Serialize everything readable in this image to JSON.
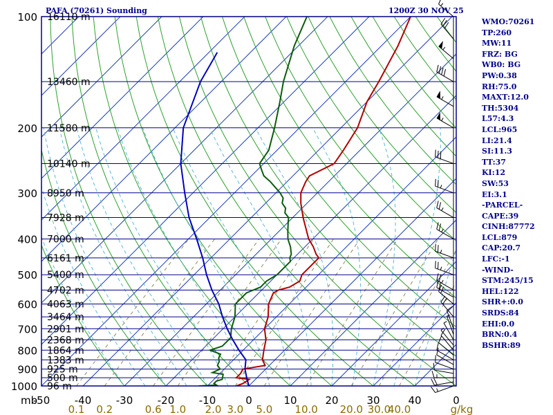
{
  "header": {
    "station_title": "PAFA (70261) Sounding",
    "time_title": "1200Z 30 NOV 25"
  },
  "colors": {
    "frame": "#00008b",
    "isobar": "#00008b",
    "isotherm": "#1f3fbf",
    "dry_adiabat": "#2ca02c",
    "moist_adiabat": "#5bb8d8",
    "mixing_ratio": "#8b8b5a",
    "temperature": "#b00000",
    "dewpoint": "#0b5a0b",
    "parcel": "#0000c0",
    "tick_labels": "#000000",
    "mixing_labels": "#8b6b00",
    "wind_barbs": "#000000"
  },
  "indices": [
    "WMO:70261",
    "TP:260",
    "MW:11",
    "FRZ: BG",
    "WB0: BG",
    "PW:0.38",
    "RH:75.0",
    "MAXT:12.0",
    "TH:5304",
    "L57:4.3",
    "LCL:965",
    "LI:21.4",
    "SI:11.3",
    "TT:37",
    "KI:12",
    "SW:53",
    "EI:3.1",
    "-PARCEL-",
    "CAPE:39",
    "CINH:87772",
    "LCL:879",
    "CAP:20.7",
    "LFC:-1",
    "-WIND-",
    "STM:245/15",
    "HEL:122",
    "SHR+:0.0",
    "SRDS:84",
    "EHI:0.0",
    "BRN:0.4",
    "BSHR:89"
  ],
  "chart_data": {
    "type": "skew-t",
    "x_axis_unit": "°C",
    "x_ticks": [
      -50,
      -40,
      -30,
      -20,
      -10,
      0,
      10,
      20,
      30,
      40
    ],
    "x_tick_labels": [
      "-50",
      "-40",
      "-30",
      "-20",
      "-10",
      "0",
      "10",
      "20",
      "30",
      "40"
    ],
    "corner_label_left": "mb",
    "corner_label_right": "0",
    "mixing_ratio_unit": "g/kg",
    "mixing_ratio_ticks": [
      0.1,
      0.2,
      0.6,
      1.0,
      2.0,
      3.0,
      5.0,
      10.0,
      20.0,
      30.0,
      40.0
    ],
    "mixing_ratio_labels": [
      "0.1",
      "0.2",
      "0.6",
      "1.0",
      "2.0",
      "3.0",
      "5.0",
      "10.0",
      "20.0",
      "30.0",
      "40.0"
    ],
    "pressure_ticks": [
      1000,
      900,
      800,
      700,
      600,
      500,
      400,
      300,
      200,
      100
    ],
    "pressure_labels": [
      "1000",
      "900",
      "800",
      "700",
      "600",
      "500",
      "400",
      "300",
      "200",
      "100"
    ],
    "pressure_range_mb": [
      1000,
      100
    ],
    "temperature_range_c": [
      -50,
      50
    ],
    "height_labels": [
      {
        "p": 100,
        "label": "16110 m"
      },
      {
        "p": 150,
        "label": "13460 m"
      },
      {
        "p": 200,
        "label": "11580 m"
      },
      {
        "p": 250,
        "label": "10140 m"
      },
      {
        "p": 300,
        "label": "8950 m"
      },
      {
        "p": 350,
        "label": "7928 m"
      },
      {
        "p": 400,
        "label": "7000 m"
      },
      {
        "p": 450,
        "label": "6161 m"
      },
      {
        "p": 500,
        "label": "5400 m"
      },
      {
        "p": 550,
        "label": "4702 m"
      },
      {
        "p": 600,
        "label": "4063 m"
      },
      {
        "p": 650,
        "label": "3464 m"
      },
      {
        "p": 700,
        "label": "2901 m"
      },
      {
        "p": 750,
        "label": "2368 m"
      },
      {
        "p": 800,
        "label": "1864 m"
      },
      {
        "p": 850,
        "label": "1383 m"
      },
      {
        "p": 900,
        "label": "925 m"
      },
      {
        "p": 950,
        "label": "500 m"
      },
      {
        "p": 1000,
        "label": "96 m"
      }
    ],
    "series": [
      {
        "kind": "temperature",
        "points": [
          [
            1000,
            -3
          ],
          [
            985,
            -2
          ],
          [
            960,
            -1.5
          ],
          [
            950,
            -5
          ],
          [
            925,
            -5
          ],
          [
            900,
            -5.5
          ],
          [
            880,
            -1
          ],
          [
            850,
            -3
          ],
          [
            800,
            -5
          ],
          [
            750,
            -7
          ],
          [
            700,
            -10
          ],
          [
            650,
            -12
          ],
          [
            600,
            -15
          ],
          [
            560,
            -16.5
          ],
          [
            550,
            -16
          ],
          [
            540,
            -14
          ],
          [
            520,
            -13
          ],
          [
            500,
            -14
          ],
          [
            480,
            -14
          ],
          [
            460,
            -14
          ],
          [
            450,
            -14
          ],
          [
            440,
            -15.5
          ],
          [
            420,
            -18
          ],
          [
            400,
            -21
          ],
          [
            350,
            -27.5
          ],
          [
            320,
            -31.5
          ],
          [
            300,
            -34
          ],
          [
            280,
            -35.5
          ],
          [
            270,
            -36
          ],
          [
            250,
            -33
          ],
          [
            230,
            -34
          ],
          [
            200,
            -36
          ],
          [
            170,
            -40
          ],
          [
            150,
            -42
          ],
          [
            120,
            -46
          ],
          [
            100,
            -50
          ]
        ]
      },
      {
        "kind": "dewpoint",
        "points": [
          [
            1000,
            -12
          ],
          [
            995,
            -8
          ],
          [
            985,
            -9
          ],
          [
            970,
            -9
          ],
          [
            960,
            -8
          ],
          [
            930,
            -9
          ],
          [
            920,
            -12
          ],
          [
            900,
            -11
          ],
          [
            880,
            -12.5
          ],
          [
            860,
            -13
          ],
          [
            840,
            -14
          ],
          [
            820,
            -14.5
          ],
          [
            800,
            -18
          ],
          [
            780,
            -16
          ],
          [
            760,
            -16
          ],
          [
            740,
            -16
          ],
          [
            700,
            -18
          ],
          [
            650,
            -20
          ],
          [
            600,
            -23
          ],
          [
            560,
            -23
          ],
          [
            540,
            -21
          ],
          [
            520,
            -21
          ],
          [
            500,
            -20
          ],
          [
            480,
            -20
          ],
          [
            460,
            -20
          ],
          [
            450,
            -21
          ],
          [
            440,
            -21.5
          ],
          [
            420,
            -23.5
          ],
          [
            400,
            -26
          ],
          [
            380,
            -28
          ],
          [
            360,
            -30
          ],
          [
            350,
            -31
          ],
          [
            340,
            -33
          ],
          [
            330,
            -34
          ],
          [
            320,
            -36
          ],
          [
            310,
            -37
          ],
          [
            300,
            -39
          ],
          [
            280,
            -44
          ],
          [
            270,
            -47
          ],
          [
            260,
            -49
          ],
          [
            250,
            -51
          ],
          [
            230,
            -52
          ],
          [
            200,
            -56
          ],
          [
            170,
            -61
          ],
          [
            150,
            -65
          ],
          [
            120,
            -71
          ],
          [
            100,
            -75
          ]
        ]
      },
      {
        "kind": "parcel",
        "points": [
          [
            1000,
            0
          ],
          [
            950,
            -2.5
          ],
          [
            900,
            -5
          ],
          [
            850,
            -7
          ],
          [
            800,
            -11
          ],
          [
            750,
            -15
          ],
          [
            700,
            -19
          ],
          [
            650,
            -23
          ],
          [
            600,
            -27
          ],
          [
            550,
            -32
          ],
          [
            500,
            -37
          ],
          [
            450,
            -42
          ],
          [
            400,
            -48
          ],
          [
            350,
            -55
          ],
          [
            300,
            -62
          ],
          [
            250,
            -70
          ],
          [
            200,
            -78
          ],
          [
            150,
            -85
          ],
          [
            125,
            -88
          ]
        ]
      }
    ],
    "wind_barbs": [
      {
        "p": 1000,
        "dir": 250,
        "spd": 15
      },
      {
        "p": 975,
        "dir": 260,
        "spd": 20
      },
      {
        "p": 950,
        "dir": 270,
        "spd": 15
      },
      {
        "p": 925,
        "dir": 280,
        "spd": 10
      },
      {
        "p": 900,
        "dir": 290,
        "spd": 10
      },
      {
        "p": 875,
        "dir": 300,
        "spd": 10
      },
      {
        "p": 850,
        "dir": 300,
        "spd": 10
      },
      {
        "p": 825,
        "dir": 310,
        "spd": 10
      },
      {
        "p": 800,
        "dir": 320,
        "spd": 10
      },
      {
        "p": 775,
        "dir": 320,
        "spd": 5
      },
      {
        "p": 750,
        "dir": 330,
        "spd": 5
      },
      {
        "p": 725,
        "dir": 340,
        "spd": 5
      },
      {
        "p": 700,
        "dir": 340,
        "spd": 10
      },
      {
        "p": 650,
        "dir": 320,
        "spd": 20
      },
      {
        "p": 600,
        "dir": 310,
        "spd": 20
      },
      {
        "p": 575,
        "dir": 300,
        "spd": 20
      },
      {
        "p": 550,
        "dir": 300,
        "spd": 25
      },
      {
        "p": 500,
        "dir": 290,
        "spd": 25
      },
      {
        "p": 450,
        "dir": 290,
        "spd": 25
      },
      {
        "p": 400,
        "dir": 300,
        "spd": 25
      },
      {
        "p": 350,
        "dir": 300,
        "spd": 25
      },
      {
        "p": 300,
        "dir": 290,
        "spd": 25
      },
      {
        "p": 250,
        "dir": 290,
        "spd": 30
      },
      {
        "p": 200,
        "dir": 300,
        "spd": 55
      },
      {
        "p": 175,
        "dir": 300,
        "spd": 55
      },
      {
        "p": 150,
        "dir": 300,
        "spd": 40
      },
      {
        "p": 130,
        "dir": 310,
        "spd": 55
      },
      {
        "p": 115,
        "dir": 320,
        "spd": 30
      },
      {
        "p": 100,
        "dir": 310,
        "spd": 15
      }
    ]
  }
}
